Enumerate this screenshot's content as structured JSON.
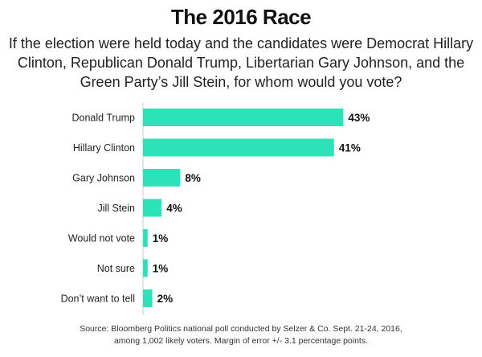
{
  "header": {
    "title": "The 2016 Race",
    "question": "If the election were held today and the candidates were Democrat Hillary Clinton, Republican Donald Trump, Libertarian Gary Johnson, and the Green Party’s Jill Stein, for whom would you vote?"
  },
  "colors": {
    "bar": "#2de2b8"
  },
  "chart_data": {
    "type": "bar",
    "orientation": "horizontal",
    "categories": [
      "Donald Trump",
      "Hillary Clinton",
      "Gary Johnson",
      "Jill Stein",
      "Would not vote",
      "Not sure",
      "Don’t want to tell"
    ],
    "values": [
      43,
      41,
      8,
      4,
      1,
      1,
      2
    ],
    "value_labels": [
      "43%",
      "41%",
      "8%",
      "4%",
      "1%",
      "1%",
      "2%"
    ],
    "xlim": [
      0,
      50
    ],
    "grid": false,
    "legend": "none"
  },
  "footer": {
    "source_line1": "Source: Bloomberg Politics national poll conducted by Selzer & Co. Sept. 21-24, 2016,",
    "source_line2": "among 1,002 likely voters. Margin of error +/- 3.1 percentage points."
  }
}
